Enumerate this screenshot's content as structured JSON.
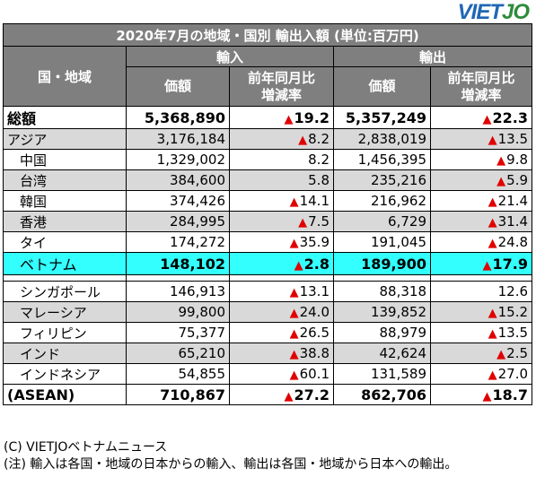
{
  "logo": {
    "part1": "VIET",
    "part2": "JO"
  },
  "title": "2020年7月の地域・国別 輸出入額 (単位:百万円)",
  "header": {
    "region": "国・地域",
    "import": "輸入",
    "export": "輸出",
    "value": "価額",
    "change_line1": "前年同月比",
    "change_line2": "増減率"
  },
  "rows": [
    {
      "name": "総額",
      "imp_val": "5,368,890",
      "imp_up": "▲",
      "imp_pct": "19.2",
      "exp_val": "5,357,249",
      "exp_up": "▲",
      "exp_pct": "22.3"
    },
    {
      "name": "アジア",
      "imp_val": "3,176,184",
      "imp_up": "▲",
      "imp_pct": "8.2",
      "exp_val": "2,838,019",
      "exp_up": "▲",
      "exp_pct": "13.5"
    },
    {
      "name": "中国",
      "imp_val": "1,329,002",
      "imp_up": "",
      "imp_pct": "8.2",
      "exp_val": "1,456,395",
      "exp_up": "▲",
      "exp_pct": "9.8"
    },
    {
      "name": "台湾",
      "imp_val": "384,600",
      "imp_up": "",
      "imp_pct": "5.8",
      "exp_val": "235,216",
      "exp_up": "▲",
      "exp_pct": "5.9"
    },
    {
      "name": "韓国",
      "imp_val": "374,426",
      "imp_up": "▲",
      "imp_pct": "14.1",
      "exp_val": "216,962",
      "exp_up": "▲",
      "exp_pct": "21.4"
    },
    {
      "name": "香港",
      "imp_val": "284,995",
      "imp_up": "▲",
      "imp_pct": "7.5",
      "exp_val": "6,729",
      "exp_up": "▲",
      "exp_pct": "31.4"
    },
    {
      "name": "タイ",
      "imp_val": "174,272",
      "imp_up": "▲",
      "imp_pct": "35.9",
      "exp_val": "191,045",
      "exp_up": "▲",
      "exp_pct": "24.8"
    },
    {
      "name": "ベトナム",
      "imp_val": "148,102",
      "imp_up": "▲",
      "imp_pct": "2.8",
      "exp_val": "189,900",
      "exp_up": "▲",
      "exp_pct": "17.9"
    },
    {
      "name": "シンガポール",
      "imp_val": "146,913",
      "imp_up": "▲",
      "imp_pct": "13.1",
      "exp_val": "88,318",
      "exp_up": "",
      "exp_pct": "12.6"
    },
    {
      "name": "マレーシア",
      "imp_val": "99,800",
      "imp_up": "▲",
      "imp_pct": "24.0",
      "exp_val": "139,852",
      "exp_up": "▲",
      "exp_pct": "15.2"
    },
    {
      "name": "フィリピン",
      "imp_val": "75,377",
      "imp_up": "▲",
      "imp_pct": "26.5",
      "exp_val": "88,979",
      "exp_up": "▲",
      "exp_pct": "13.5"
    },
    {
      "name": "インド",
      "imp_val": "65,210",
      "imp_up": "▲",
      "imp_pct": "38.8",
      "exp_val": "42,624",
      "exp_up": "▲",
      "exp_pct": "2.5"
    },
    {
      "name": "インドネシア",
      "imp_val": "54,855",
      "imp_up": "▲",
      "imp_pct": "60.1",
      "exp_val": "131,589",
      "exp_up": "▲",
      "exp_pct": "27.0"
    },
    {
      "name": "(ASEAN)",
      "imp_val": "710,867",
      "imp_up": "▲",
      "imp_pct": "27.2",
      "exp_val": "862,706",
      "exp_up": "▲",
      "exp_pct": "18.7"
    }
  ],
  "notes": {
    "credit": "(C) VIETJOベトナムニュース",
    "note": "(注) 輸入は各国・地域の日本からの輸入、輸出は各国・地域から日本への輸出。"
  },
  "colors": {
    "header_bg": "#7f7f7f",
    "stripe": "#d9d9d9",
    "highlight": "#33ffff",
    "decrease": "#e00000"
  }
}
